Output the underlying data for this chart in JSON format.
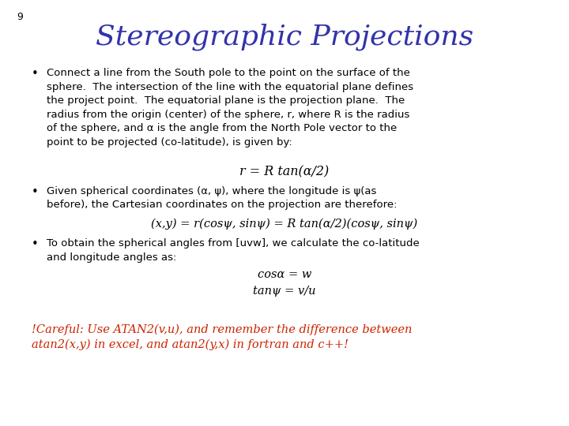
{
  "slide_number": "9",
  "title": "Stereographic Projections",
  "title_color": "#3333AA",
  "title_fontsize": 26,
  "title_style": "italic",
  "title_font": "serif",
  "background_color": "#FFFFFF",
  "text_color": "#000000",
  "red_color": "#CC2200",
  "bullet1": "Connect a line from the South pole to the point on the surface of the\nsphere.  The intersection of the line with the equatorial plane defines\nthe project point.  The equatorial plane is the projection plane.  The\nradius from the origin (center) of the sphere, r, where R is the radius\nof the sphere, and α is the angle from the North Pole vector to the\npoint to be projected (co-latitude), is given by:",
  "formula1": "r = R tan(α/2)",
  "bullet2_pre": "Given spherical coordinates (α, ψ), where the longitude is ψ(as\nbefore), the Cartesian coordinates on the projection are therefore:",
  "formula2": "(x,y) = r(cosψ, sinψ) = R tan(α/2)(cosψ, sinψ)",
  "bullet3": "To obtain the spherical angles from [uvw], we calculate the co-latitude\nand longitude angles as:",
  "formula3a": "cosα = w",
  "formula3b": "tanψ = v/u",
  "warning": "!Careful: Use ATAN2(v,u), and remember the difference between\natan2(x,y) in excel, and atan2(y,x) in fortran and c++!",
  "body_fontsize": 9.5,
  "formula_fontsize": 10.5,
  "warning_fontsize": 10.5,
  "slide_num_fontsize": 9
}
